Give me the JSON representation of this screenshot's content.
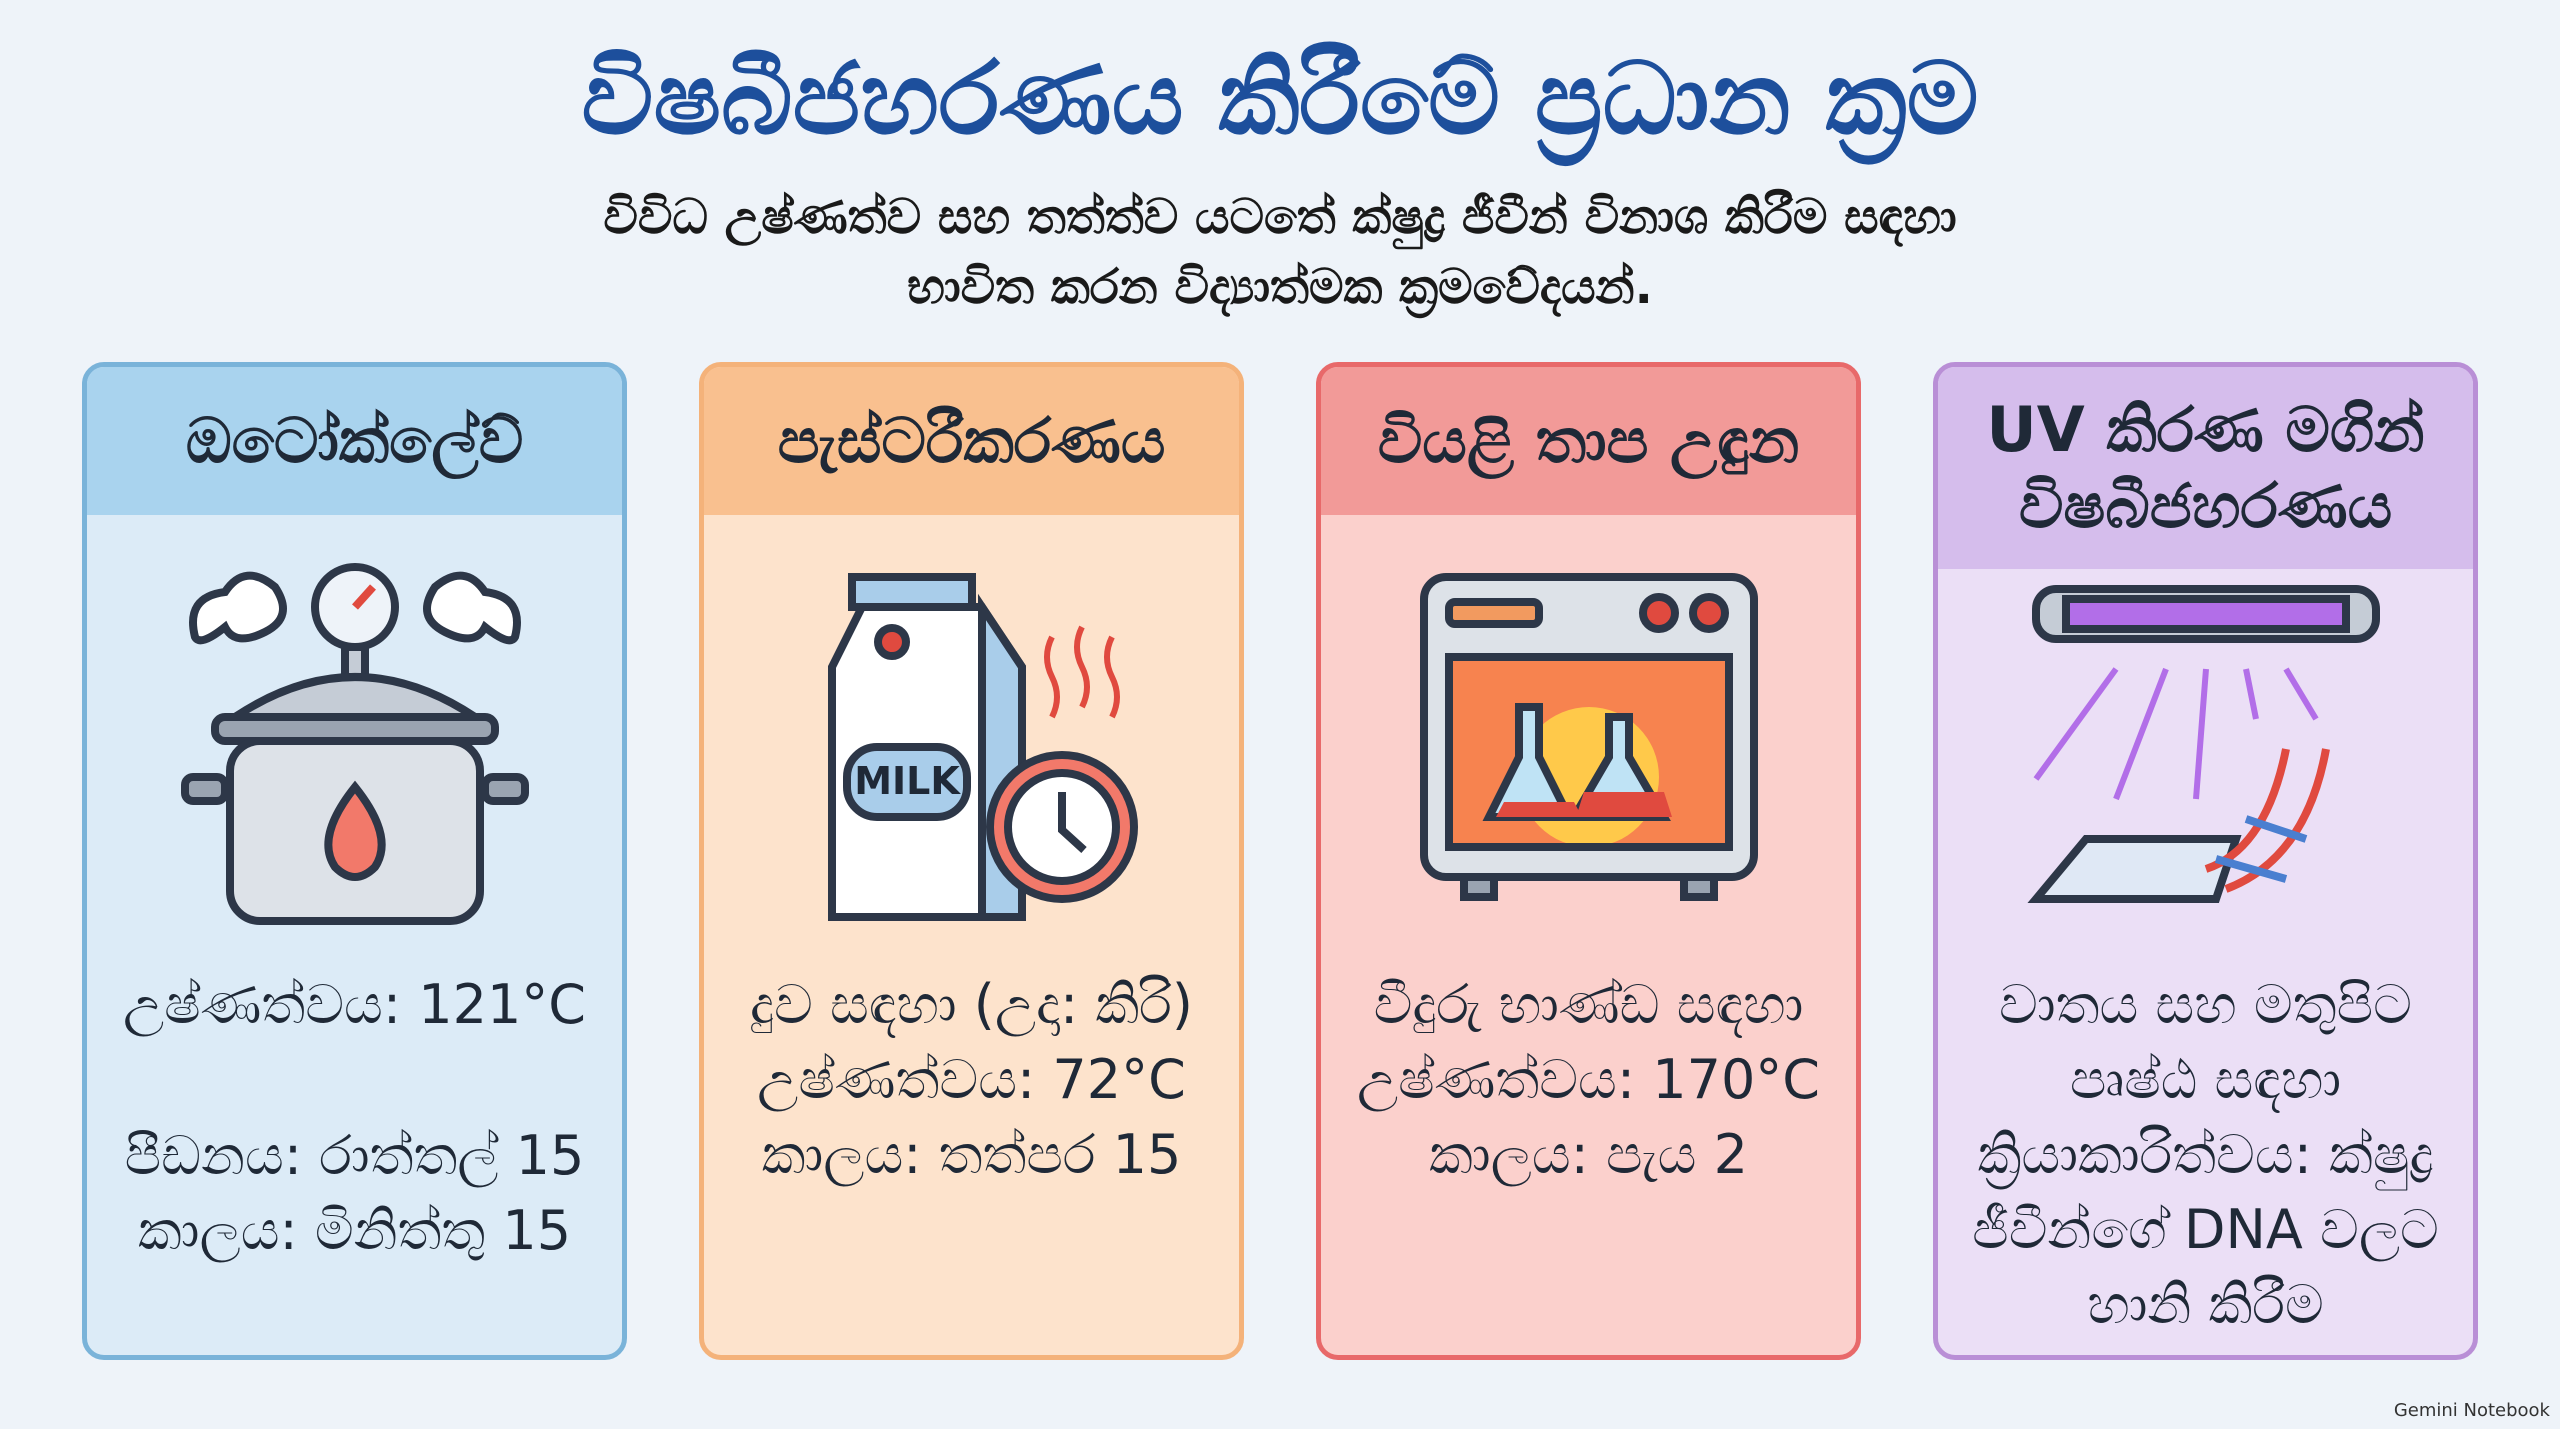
{
  "header": {
    "title": "විෂබීජහරණය කිරීමේ ප්‍රධාන ක්‍රම",
    "subtitle": [
      "විවිධ උෂ්ණත්ව සහ තත්ත්ව යටතේ ක්ෂුද්‍ර ජීවීන් විනාශ කිරීම සඳහා",
      "භාවිත කරන විද්‍යාත්මක ක්‍රමවේදයන්."
    ]
  },
  "cards": [
    {
      "title": "ඔටෝක්ලේව්",
      "lines": [
        "උෂ්ණත්වය: 121°C",
        "පීඩනය: රාත්තල් 15",
        "කාලය: මිනිත්තු 15"
      ]
    },
    {
      "title": "පැස්ටරීකරණය",
      "lines": [
        "දුව සඳහා (උදා: කිරි)",
        "උෂ්ණත්වය: 72°C",
        "කාලය: තත්පර 15"
      ],
      "icon_text": "MILK"
    },
    {
      "title": "වියළි තාප උඳුන",
      "lines": [
        "වීදුරු භාණ්ඩ සඳහා",
        "උෂ්ණත්වය: 170°C",
        "කාලය: පැය 2"
      ]
    },
    {
      "title": "UV කිරණ මගින් විෂබීජහරණය",
      "lines": [
        "වාතය සහ මතුපිට පෘෂ්ඨ සඳහා",
        "ක්‍රියාකාරිත්වය: ක්ෂුද්‍ර ජීවීන්ගේ DNA වලට හානි කිරීම"
      ]
    }
  ],
  "footer": "Gemini Notebook"
}
